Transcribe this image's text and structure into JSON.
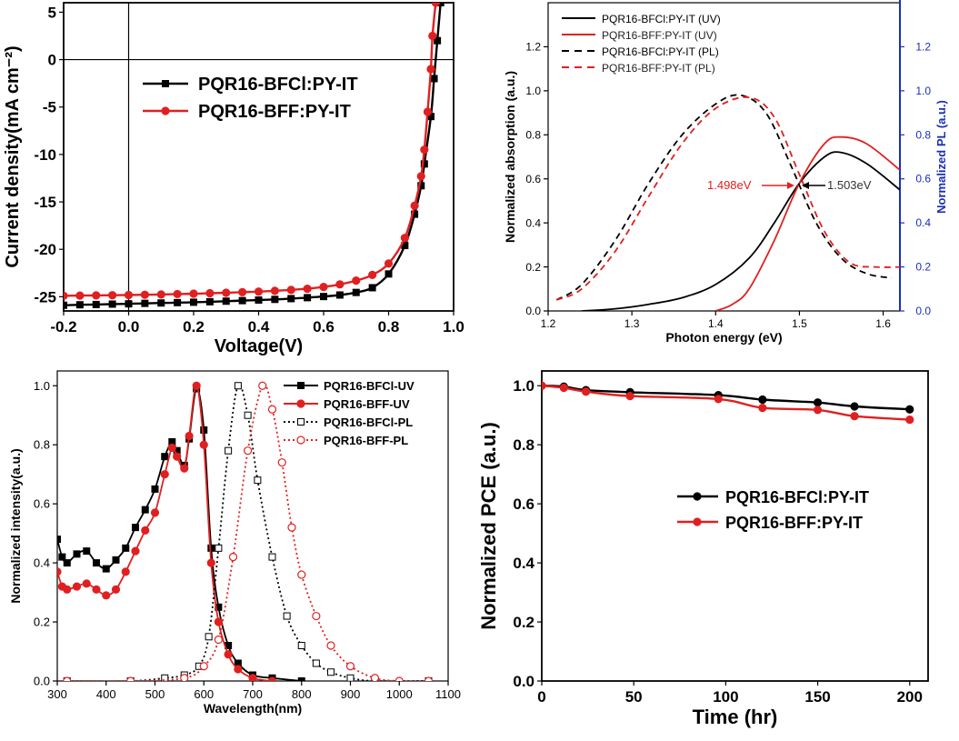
{
  "chart_data": [
    {
      "id": "jv",
      "type": "line",
      "xlabel": "Voltage(V)",
      "ylabel": "Current density(mA cm⁻²)",
      "xlim": [
        -0.2,
        1.0
      ],
      "ylim": [
        -26.5,
        6
      ],
      "xticks": [
        "-0.2",
        "0.0",
        "0.2",
        "0.4",
        "0.6",
        "0.8",
        "1.0"
      ],
      "yticks": [
        "5",
        "0",
        "-5",
        "-10",
        "-15",
        "-20",
        "-25"
      ],
      "legend": [
        "PQR16-BFCl:PY-IT",
        "PQR16-BFF:PY-IT"
      ],
      "series": [
        {
          "name": "PQR16-BFCl:PY-IT",
          "color": "#000000",
          "marker": "square",
          "points": [
            [
              -0.2,
              -25.9
            ],
            [
              -0.15,
              -25.85
            ],
            [
              -0.1,
              -25.82
            ],
            [
              -0.05,
              -25.78
            ],
            [
              0.0,
              -25.75
            ],
            [
              0.05,
              -25.7
            ],
            [
              0.1,
              -25.66
            ],
            [
              0.15,
              -25.62
            ],
            [
              0.2,
              -25.58
            ],
            [
              0.25,
              -25.53
            ],
            [
              0.3,
              -25.47
            ],
            [
              0.35,
              -25.41
            ],
            [
              0.4,
              -25.35
            ],
            [
              0.45,
              -25.28
            ],
            [
              0.5,
              -25.2
            ],
            [
              0.55,
              -25.1
            ],
            [
              0.6,
              -24.98
            ],
            [
              0.65,
              -24.82
            ],
            [
              0.7,
              -24.55
            ],
            [
              0.75,
              -24.05
            ],
            [
              0.8,
              -22.6
            ],
            [
              0.85,
              -19.6
            ],
            [
              0.88,
              -16.3
            ],
            [
              0.9,
              -13.3
            ],
            [
              0.91,
              -11.0
            ],
            [
              0.93,
              -6.0
            ],
            [
              0.94,
              -2.0
            ],
            [
              0.95,
              2.0
            ],
            [
              0.96,
              6.0
            ]
          ]
        },
        {
          "name": "PQR16-BFF:PY-IT",
          "color": "#e02020",
          "marker": "circle",
          "points": [
            [
              -0.2,
              -24.9
            ],
            [
              -0.15,
              -24.88
            ],
            [
              -0.1,
              -24.86
            ],
            [
              -0.05,
              -24.84
            ],
            [
              0.0,
              -24.82
            ],
            [
              0.05,
              -24.79
            ],
            [
              0.1,
              -24.76
            ],
            [
              0.15,
              -24.72
            ],
            [
              0.2,
              -24.68
            ],
            [
              0.25,
              -24.63
            ],
            [
              0.3,
              -24.58
            ],
            [
              0.35,
              -24.52
            ],
            [
              0.4,
              -24.46
            ],
            [
              0.45,
              -24.38
            ],
            [
              0.5,
              -24.28
            ],
            [
              0.55,
              -24.16
            ],
            [
              0.6,
              -23.97
            ],
            [
              0.65,
              -23.7
            ],
            [
              0.7,
              -23.3
            ],
            [
              0.75,
              -22.7
            ],
            [
              0.8,
              -21.5
            ],
            [
              0.85,
              -18.8
            ],
            [
              0.88,
              -15.4
            ],
            [
              0.9,
              -12.3
            ],
            [
              0.91,
              -9.5
            ],
            [
              0.92,
              -5.5
            ],
            [
              0.93,
              -1.0
            ],
            [
              0.935,
              2.5
            ],
            [
              0.945,
              6.0
            ]
          ]
        }
      ]
    },
    {
      "id": "abs",
      "type": "line",
      "xlabel": "Photon energy (eV)",
      "ylabel": "Normalized  absorption (a.u.)",
      "y2label": "Normalized  PL (a.u.)",
      "xlim": [
        1.2,
        1.62
      ],
      "ylim": [
        0,
        1.4
      ],
      "xticks": [
        "1.2",
        "1.3",
        "1.4",
        "1.5",
        "1.6"
      ],
      "yticks": [
        "0.0",
        "0.2",
        "0.4",
        "0.6",
        "0.8",
        "1.0",
        "1.2"
      ],
      "legend": [
        "PQR16-BFCl:PY-IT (UV)",
        "PQR16-BFF:PY-IT (UV)",
        "PQR16-BFCl:PY-IT (PL)",
        "PQR16-BFF:PY-IT (PL)"
      ],
      "annotations": [
        "1.498eV",
        "1.503eV"
      ],
      "series": [
        {
          "name": "PQR16-BFCl:PY-IT (UV)",
          "color": "#000000",
          "dash": false,
          "points": [
            [
              1.24,
              0.0
            ],
            [
              1.28,
              0.01
            ],
            [
              1.32,
              0.03
            ],
            [
              1.36,
              0.06
            ],
            [
              1.4,
              0.12
            ],
            [
              1.44,
              0.24
            ],
            [
              1.47,
              0.4
            ],
            [
              1.5,
              0.58
            ],
            [
              1.53,
              0.7
            ],
            [
              1.55,
              0.72
            ],
            [
              1.58,
              0.67
            ],
            [
              1.62,
              0.55
            ]
          ]
        },
        {
          "name": "PQR16-BFF:PY-IT (UV)",
          "color": "#e02020",
          "dash": false,
          "points": [
            [
              1.4,
              0.0
            ],
            [
              1.42,
              0.03
            ],
            [
              1.44,
              0.1
            ],
            [
              1.47,
              0.32
            ],
            [
              1.5,
              0.58
            ],
            [
              1.53,
              0.76
            ],
            [
              1.55,
              0.79
            ],
            [
              1.58,
              0.76
            ],
            [
              1.62,
              0.64
            ]
          ]
        },
        {
          "name": "PQR16-BFCl:PY-IT (PL)",
          "color": "#000000",
          "dash": true,
          "points": [
            [
              1.21,
              0.05
            ],
            [
              1.24,
              0.12
            ],
            [
              1.28,
              0.32
            ],
            [
              1.32,
              0.58
            ],
            [
              1.36,
              0.8
            ],
            [
              1.4,
              0.94
            ],
            [
              1.43,
              0.98
            ],
            [
              1.46,
              0.9
            ],
            [
              1.49,
              0.66
            ],
            [
              1.52,
              0.4
            ],
            [
              1.55,
              0.24
            ],
            [
              1.58,
              0.17
            ],
            [
              1.61,
              0.15
            ]
          ]
        },
        {
          "name": "PQR16-BFF:PY-IT (PL)",
          "color": "#e02020",
          "dash": true,
          "points": [
            [
              1.21,
              0.05
            ],
            [
              1.24,
              0.1
            ],
            [
              1.28,
              0.27
            ],
            [
              1.32,
              0.52
            ],
            [
              1.36,
              0.76
            ],
            [
              1.4,
              0.92
            ],
            [
              1.44,
              0.97
            ],
            [
              1.47,
              0.88
            ],
            [
              1.5,
              0.62
            ],
            [
              1.53,
              0.36
            ],
            [
              1.56,
              0.22
            ],
            [
              1.59,
              0.2
            ],
            [
              1.62,
              0.2
            ]
          ]
        }
      ]
    },
    {
      "id": "spec",
      "type": "line",
      "xlabel": "Wavelength(nm)",
      "ylabel": "Normalized intensity(a.u.)",
      "xlim": [
        300,
        1100
      ],
      "ylim": [
        0,
        1.05
      ],
      "xticks": [
        "300",
        "400",
        "500",
        "600",
        "700",
        "800",
        "900",
        "1000",
        "1100"
      ],
      "yticks": [
        "0.0",
        "0.2",
        "0.4",
        "0.6",
        "0.8",
        "1.0"
      ],
      "legend": [
        "PQR16-BFCl-UV",
        "PQR16-BFF-UV",
        "PQR16-BFCl-PL",
        "PQR16-BFF-PL"
      ],
      "series": [
        {
          "name": "PQR16-BFCl-UV",
          "color": "#000000",
          "marker": "square-filled",
          "dash": false,
          "points": [
            [
              300,
              0.48
            ],
            [
              310,
              0.42
            ],
            [
              320,
              0.4
            ],
            [
              340,
              0.43
            ],
            [
              360,
              0.44
            ],
            [
              380,
              0.4
            ],
            [
              400,
              0.38
            ],
            [
              420,
              0.41
            ],
            [
              440,
              0.45
            ],
            [
              460,
              0.52
            ],
            [
              480,
              0.58
            ],
            [
              500,
              0.65
            ],
            [
              520,
              0.76
            ],
            [
              535,
              0.81
            ],
            [
              545,
              0.78
            ],
            [
              560,
              0.73
            ],
            [
              570,
              0.82
            ],
            [
              585,
              0.99
            ],
            [
              600,
              0.85
            ],
            [
              615,
              0.45
            ],
            [
              630,
              0.25
            ],
            [
              650,
              0.12
            ],
            [
              670,
              0.06
            ],
            [
              700,
              0.02
            ],
            [
              740,
              0.01
            ],
            [
              800,
              0.0
            ]
          ]
        },
        {
          "name": "PQR16-BFF-UV",
          "color": "#e02020",
          "marker": "circle-filled",
          "dash": false,
          "points": [
            [
              300,
              0.37
            ],
            [
              310,
              0.32
            ],
            [
              320,
              0.31
            ],
            [
              340,
              0.32
            ],
            [
              360,
              0.33
            ],
            [
              380,
              0.31
            ],
            [
              400,
              0.29
            ],
            [
              420,
              0.31
            ],
            [
              440,
              0.37
            ],
            [
              460,
              0.44
            ],
            [
              480,
              0.51
            ],
            [
              500,
              0.57
            ],
            [
              520,
              0.7
            ],
            [
              535,
              0.79
            ],
            [
              545,
              0.76
            ],
            [
              560,
              0.72
            ],
            [
              570,
              0.83
            ],
            [
              585,
              1.0
            ],
            [
              600,
              0.8
            ],
            [
              615,
              0.4
            ],
            [
              630,
              0.2
            ],
            [
              650,
              0.09
            ],
            [
              670,
              0.04
            ],
            [
              700,
              0.01
            ],
            [
              740,
              0.0
            ]
          ]
        },
        {
          "name": "PQR16-BFCl-PL",
          "color": "#000000",
          "marker": "square-open",
          "dash": true,
          "points": [
            [
              320,
              0.0
            ],
            [
              450,
              0.0
            ],
            [
              520,
              0.01
            ],
            [
              560,
              0.02
            ],
            [
              590,
              0.05
            ],
            [
              610,
              0.15
            ],
            [
              630,
              0.45
            ],
            [
              650,
              0.78
            ],
            [
              670,
              1.0
            ],
            [
              690,
              0.9
            ],
            [
              710,
              0.68
            ],
            [
              740,
              0.42
            ],
            [
              770,
              0.22
            ],
            [
              800,
              0.12
            ],
            [
              830,
              0.06
            ],
            [
              860,
              0.03
            ],
            [
              900,
              0.01
            ],
            [
              950,
              0.0
            ],
            [
              1060,
              0.0
            ]
          ]
        },
        {
          "name": "PQR16-BFF-PL",
          "color": "#e02020",
          "marker": "circle-open",
          "dash": true,
          "points": [
            [
              320,
              0.0
            ],
            [
              450,
              0.0
            ],
            [
              560,
              0.01
            ],
            [
              600,
              0.05
            ],
            [
              630,
              0.14
            ],
            [
              660,
              0.42
            ],
            [
              690,
              0.78
            ],
            [
              720,
              1.0
            ],
            [
              740,
              0.92
            ],
            [
              760,
              0.74
            ],
            [
              780,
              0.52
            ],
            [
              800,
              0.36
            ],
            [
              830,
              0.22
            ],
            [
              860,
              0.12
            ],
            [
              900,
              0.05
            ],
            [
              950,
              0.01
            ],
            [
              1000,
              0.0
            ],
            [
              1060,
              0.0
            ]
          ]
        }
      ]
    },
    {
      "id": "stab",
      "type": "line",
      "xlabel": "Time (hr)",
      "ylabel": "Normalized PCE (a.u.)",
      "xlim": [
        0,
        210
      ],
      "ylim": [
        0,
        1.05
      ],
      "xticks": [
        "0",
        "50",
        "100",
        "150",
        "200"
      ],
      "yticks": [
        "0.0",
        "0.2",
        "0.4",
        "0.6",
        "0.8",
        "1.0"
      ],
      "legend": [
        "PQR16-BFCl:PY-IT",
        "PQR16-BFF:PY-IT"
      ],
      "series": [
        {
          "name": "PQR16-BFCl:PY-IT",
          "color": "#000000",
          "marker": "circle",
          "points": [
            [
              0,
              1.0
            ],
            [
              12,
              0.997
            ],
            [
              24,
              0.985
            ],
            [
              48,
              0.978
            ],
            [
              96,
              0.968
            ],
            [
              120,
              0.953
            ],
            [
              150,
              0.943
            ],
            [
              170,
              0.93
            ],
            [
              200,
              0.92
            ]
          ]
        },
        {
          "name": "PQR16-BFF:PY-IT",
          "color": "#e02020",
          "marker": "circle",
          "points": [
            [
              0,
              1.0
            ],
            [
              12,
              0.993
            ],
            [
              24,
              0.98
            ],
            [
              48,
              0.965
            ],
            [
              96,
              0.955
            ],
            [
              120,
              0.925
            ],
            [
              150,
              0.918
            ],
            [
              170,
              0.897
            ],
            [
              200,
              0.885
            ]
          ]
        }
      ]
    }
  ]
}
